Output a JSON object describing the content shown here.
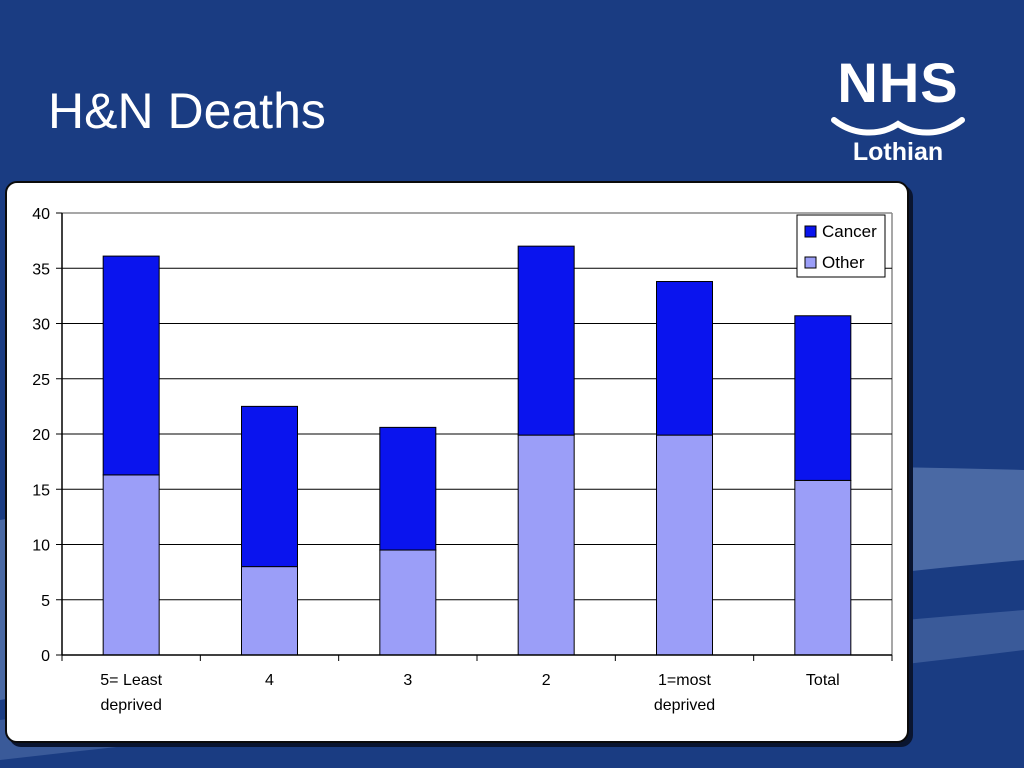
{
  "slide": {
    "title": "H&N Deaths"
  },
  "logo": {
    "mark": "NHS",
    "region": "Lothian",
    "wave_icon": "nhs-wave-icon"
  },
  "colors": {
    "background": "#1a3c82",
    "background_swoosh": "#4a69a4",
    "cancer": "#0a14ee",
    "other": "#9b9ef8",
    "gridline": "#000000"
  },
  "chart_data": {
    "type": "bar",
    "stacked": true,
    "categories": [
      "5= Least deprived",
      "4",
      "3",
      "2",
      "1=most deprived",
      "Total"
    ],
    "category_lines": [
      [
        "5= Least",
        "deprived"
      ],
      [
        "4"
      ],
      [
        "3"
      ],
      [
        "2"
      ],
      [
        "1=most",
        "deprived"
      ],
      [
        "Total"
      ]
    ],
    "series": [
      {
        "name": "Other",
        "values": [
          16.3,
          8.0,
          9.5,
          19.9,
          19.9,
          15.8
        ]
      },
      {
        "name": "Cancer",
        "values": [
          19.8,
          14.5,
          11.1,
          17.1,
          13.9,
          14.9
        ]
      }
    ],
    "legend_order": [
      "Cancer",
      "Other"
    ],
    "ylim": [
      0,
      40
    ],
    "yticks": [
      0,
      5,
      10,
      15,
      20,
      25,
      30,
      35,
      40
    ],
    "grid": true,
    "legend_position": "top-right"
  }
}
